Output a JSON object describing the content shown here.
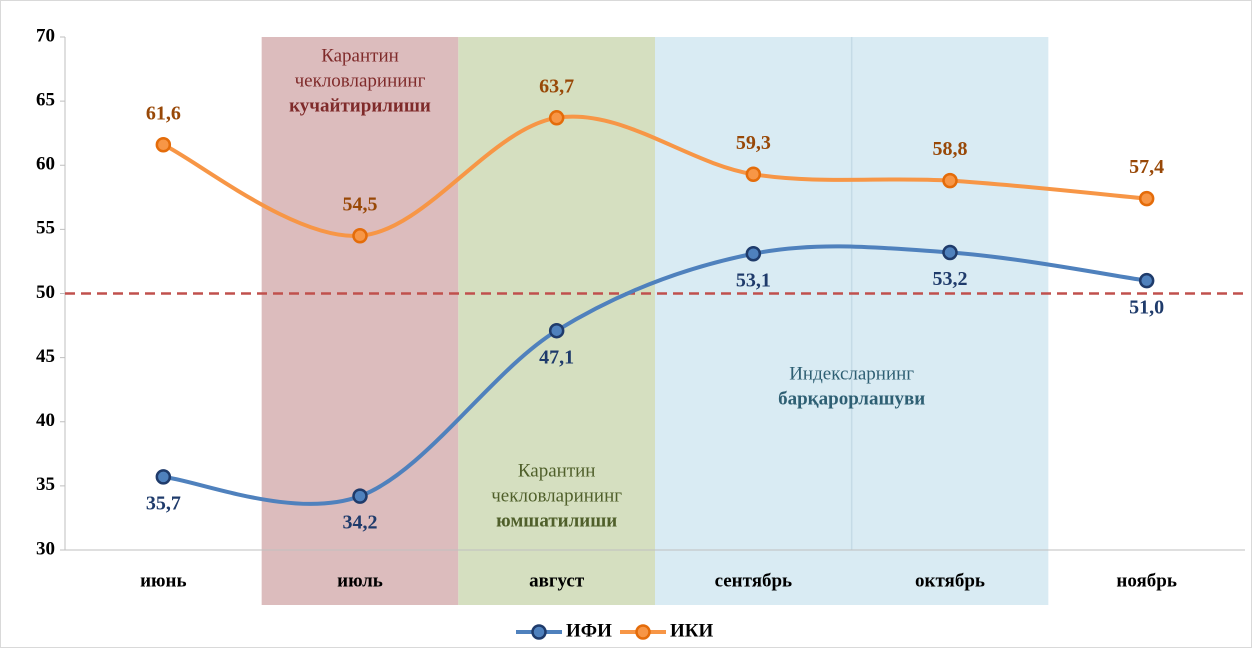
{
  "chart_data": {
    "type": "line",
    "categories": [
      "июнь",
      "июль",
      "август",
      "сентябрь",
      "октябрь",
      "ноябрь"
    ],
    "series": [
      {
        "name": "ИФИ",
        "color": "#4f81bd",
        "marker_color": "#1f3b6b",
        "label_color": "#1f3b6b",
        "values": [
          35.7,
          34.2,
          47.1,
          53.1,
          53.2,
          51.0
        ],
        "value_labels": [
          "35,7",
          "34,2",
          "47,1",
          "53,1",
          "53,2",
          "51,0"
        ],
        "label_position": "below"
      },
      {
        "name": "ИКИ",
        "color": "#f79646",
        "marker_color": "#e46c0a",
        "label_color": "#984807",
        "values": [
          61.6,
          54.5,
          63.7,
          59.3,
          58.8,
          57.4
        ],
        "value_labels": [
          "61,6",
          "54,5",
          "63,7",
          "59,3",
          "58,8",
          "57,4"
        ],
        "label_position": "above"
      }
    ],
    "ylim": [
      30,
      70
    ],
    "yticks": [
      30,
      35,
      40,
      45,
      50,
      55,
      60,
      65,
      70
    ],
    "grid": false,
    "reference_line": {
      "value": 50,
      "color": "#c0504d",
      "dashed": true
    },
    "regions": [
      {
        "categories": [
          "июль"
        ],
        "color": "#dcbcbd",
        "text": [
          "Карантин",
          "чекловларининг"
        ],
        "emphasis": "кучайтирилиши",
        "text_color": "#7f2a2a",
        "position": "top"
      },
      {
        "categories": [
          "август"
        ],
        "color": "#d5dfc0",
        "text": [
          "Карантин",
          "чекловларининг"
        ],
        "emphasis": "юмшатилиши",
        "text_color": "#4f5f2a",
        "position": "bottom"
      },
      {
        "categories": [
          "сентябрь",
          "октябрь"
        ],
        "color": "#d9ebf3",
        "text": [
          "Индексларнинг"
        ],
        "emphasis": "барқарорлашуви",
        "text_color": "#2e5f73",
        "position": "middle"
      }
    ],
    "legend": "bottom"
  }
}
